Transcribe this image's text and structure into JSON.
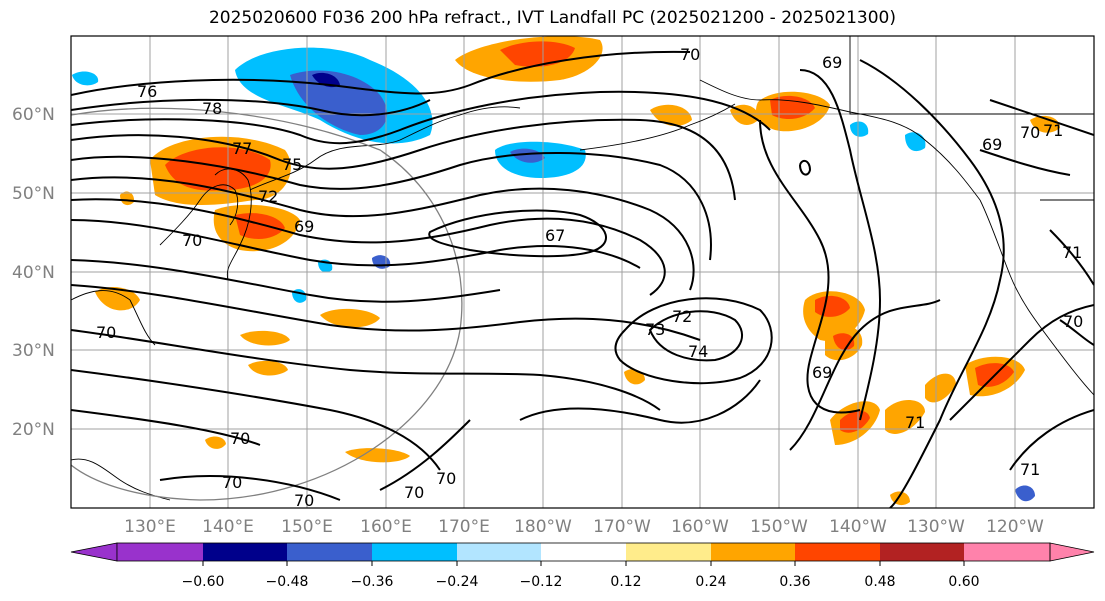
{
  "title": "2025020600 F036 200 hPa refract., IVT Landfall PC (2025021200 - 2025021300)",
  "lat_labels": [
    "60°N",
    "50°N",
    "40°N",
    "30°N",
    "20°N"
  ],
  "lon_labels": [
    "130°E",
    "140°E",
    "150°E",
    "160°E",
    "170°E",
    "180°W",
    "170°W",
    "160°W",
    "150°W",
    "140°W",
    "130°W",
    "120°W"
  ],
  "contour_labels": [
    "76",
    "78",
    "77",
    "75",
    "72",
    "69",
    "70",
    "70",
    "67",
    "73",
    "72",
    "74",
    "69",
    "71",
    "70",
    "70",
    "70",
    "70",
    "70",
    "70",
    "69",
    "71",
    "69",
    "70",
    "71",
    "71",
    "70"
  ],
  "colorbar": {
    "ticks": [
      "−0.60",
      "−0.48",
      "−0.36",
      "−0.24",
      "−0.12",
      "0.12",
      "0.24",
      "0.36",
      "0.48",
      "0.60"
    ],
    "colors": [
      "#9932cc",
      "#00008b",
      "#3a5fcd",
      "#00bfff",
      "#b2e5ff",
      "#ffffff",
      "#ffec8b",
      "#ffa500",
      "#ff4500",
      "#b22222",
      "#ff82ab"
    ]
  },
  "fill_colors": {
    "orange": "#ffa500",
    "red": "#ff4500",
    "yellow": "#ffec8b",
    "cyan": "#00bfff",
    "blue": "#3a5fcd",
    "navy": "#00008b"
  }
}
